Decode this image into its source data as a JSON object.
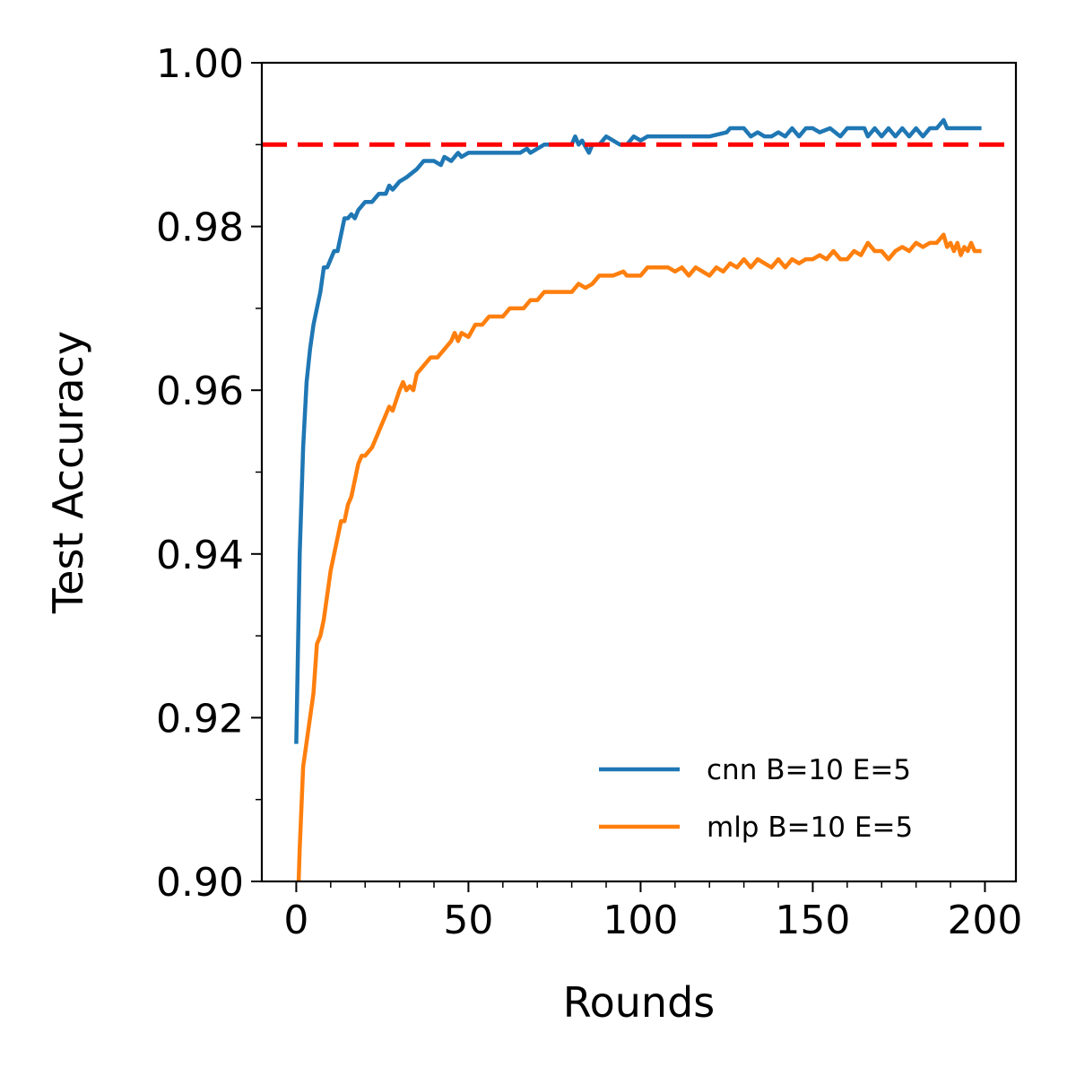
{
  "chart_data": {
    "type": "line",
    "xlabel": "Rounds",
    "ylabel": "Test Accuracy",
    "xlim": [
      -10,
      209
    ],
    "ylim": [
      0.9,
      1.0
    ],
    "x_ticks": [
      0,
      50,
      100,
      150,
      200
    ],
    "x_tick_labels": [
      "0",
      "50",
      "100",
      "150",
      "200"
    ],
    "y_ticks": [
      0.9,
      0.92,
      0.94,
      0.96,
      0.98,
      1.0
    ],
    "y_tick_labels": [
      "0.90",
      "0.92",
      "0.94",
      "0.96",
      "0.98",
      "1.00"
    ],
    "grid": false,
    "legend_position": "lower right",
    "reference_line": {
      "y": 0.99,
      "color": "#ff0000",
      "style": "dashed"
    },
    "series": [
      {
        "name": "cnn B=10 E=5",
        "color": "#1f77b4",
        "points": [
          [
            0,
            0.9168
          ],
          [
            1,
            0.94
          ],
          [
            2,
            0.953
          ],
          [
            3,
            0.961
          ],
          [
            4,
            0.965
          ],
          [
            5,
            0.968
          ],
          [
            6,
            0.97
          ],
          [
            7,
            0.972
          ],
          [
            8,
            0.975
          ],
          [
            9,
            0.975
          ],
          [
            10,
            0.976
          ],
          [
            11,
            0.977
          ],
          [
            12,
            0.977
          ],
          [
            13,
            0.979
          ],
          [
            14,
            0.981
          ],
          [
            15,
            0.981
          ],
          [
            16,
            0.9815
          ],
          [
            17,
            0.981
          ],
          [
            18,
            0.982
          ],
          [
            19,
            0.9825
          ],
          [
            20,
            0.983
          ],
          [
            22,
            0.983
          ],
          [
            24,
            0.984
          ],
          [
            26,
            0.984
          ],
          [
            27,
            0.985
          ],
          [
            28,
            0.9845
          ],
          [
            30,
            0.9855
          ],
          [
            32,
            0.986
          ],
          [
            35,
            0.987
          ],
          [
            37,
            0.988
          ],
          [
            40,
            0.988
          ],
          [
            42,
            0.9875
          ],
          [
            43,
            0.9885
          ],
          [
            45,
            0.988
          ],
          [
            47,
            0.989
          ],
          [
            48,
            0.9885
          ],
          [
            50,
            0.989
          ],
          [
            55,
            0.989
          ],
          [
            60,
            0.989
          ],
          [
            65,
            0.989
          ],
          [
            67,
            0.9895
          ],
          [
            68,
            0.989
          ],
          [
            70,
            0.9895
          ],
          [
            72,
            0.99
          ],
          [
            75,
            0.99
          ],
          [
            80,
            0.99
          ],
          [
            81,
            0.991
          ],
          [
            82,
            0.99
          ],
          [
            83,
            0.9905
          ],
          [
            85,
            0.989
          ],
          [
            86,
            0.99
          ],
          [
            88,
            0.99
          ],
          [
            90,
            0.991
          ],
          [
            92,
            0.9905
          ],
          [
            94,
            0.99
          ],
          [
            96,
            0.99
          ],
          [
            98,
            0.991
          ],
          [
            100,
            0.9905
          ],
          [
            102,
            0.991
          ],
          [
            110,
            0.991
          ],
          [
            120,
            0.991
          ],
          [
            125,
            0.9915
          ],
          [
            126,
            0.992
          ],
          [
            130,
            0.992
          ],
          [
            132,
            0.991
          ],
          [
            134,
            0.9915
          ],
          [
            136,
            0.991
          ],
          [
            138,
            0.991
          ],
          [
            140,
            0.9915
          ],
          [
            142,
            0.991
          ],
          [
            144,
            0.992
          ],
          [
            146,
            0.991
          ],
          [
            148,
            0.992
          ],
          [
            150,
            0.992
          ],
          [
            152,
            0.9915
          ],
          [
            155,
            0.992
          ],
          [
            158,
            0.991
          ],
          [
            160,
            0.992
          ],
          [
            165,
            0.992
          ],
          [
            166,
            0.991
          ],
          [
            168,
            0.992
          ],
          [
            170,
            0.991
          ],
          [
            172,
            0.992
          ],
          [
            174,
            0.991
          ],
          [
            176,
            0.992
          ],
          [
            178,
            0.991
          ],
          [
            180,
            0.992
          ],
          [
            182,
            0.991
          ],
          [
            184,
            0.992
          ],
          [
            186,
            0.992
          ],
          [
            188,
            0.993
          ],
          [
            189,
            0.992
          ],
          [
            192,
            0.992
          ],
          [
            199,
            0.992
          ]
        ]
      },
      {
        "name": "mlp B=10 E=5",
        "color": "#ff7f0e",
        "points": [
          [
            0.7,
            0.9
          ],
          [
            1,
            0.904
          ],
          [
            2,
            0.914
          ],
          [
            3,
            0.917
          ],
          [
            4,
            0.92
          ],
          [
            5,
            0.923
          ],
          [
            6,
            0.929
          ],
          [
            7,
            0.93
          ],
          [
            8,
            0.932
          ],
          [
            9,
            0.935
          ],
          [
            10,
            0.938
          ],
          [
            12,
            0.942
          ],
          [
            13,
            0.944
          ],
          [
            14,
            0.944
          ],
          [
            15,
            0.946
          ],
          [
            16,
            0.947
          ],
          [
            17,
            0.949
          ],
          [
            18,
            0.951
          ],
          [
            19,
            0.952
          ],
          [
            20,
            0.952
          ],
          [
            22,
            0.953
          ],
          [
            24,
            0.955
          ],
          [
            26,
            0.957
          ],
          [
            27,
            0.958
          ],
          [
            28,
            0.9575
          ],
          [
            30,
            0.96
          ],
          [
            31,
            0.961
          ],
          [
            32,
            0.96
          ],
          [
            33,
            0.9605
          ],
          [
            34,
            0.96
          ],
          [
            35,
            0.962
          ],
          [
            37,
            0.963
          ],
          [
            39,
            0.964
          ],
          [
            41,
            0.964
          ],
          [
            43,
            0.965
          ],
          [
            45,
            0.966
          ],
          [
            46,
            0.967
          ],
          [
            47,
            0.966
          ],
          [
            48,
            0.967
          ],
          [
            50,
            0.9665
          ],
          [
            52,
            0.968
          ],
          [
            54,
            0.968
          ],
          [
            56,
            0.969
          ],
          [
            58,
            0.969
          ],
          [
            60,
            0.969
          ],
          [
            62,
            0.97
          ],
          [
            64,
            0.97
          ],
          [
            66,
            0.97
          ],
          [
            68,
            0.971
          ],
          [
            70,
            0.971
          ],
          [
            72,
            0.972
          ],
          [
            76,
            0.972
          ],
          [
            80,
            0.972
          ],
          [
            82,
            0.973
          ],
          [
            84,
            0.9725
          ],
          [
            86,
            0.973
          ],
          [
            88,
            0.974
          ],
          [
            92,
            0.974
          ],
          [
            95,
            0.9745
          ],
          [
            96,
            0.974
          ],
          [
            100,
            0.974
          ],
          [
            102,
            0.975
          ],
          [
            108,
            0.975
          ],
          [
            110,
            0.9745
          ],
          [
            112,
            0.975
          ],
          [
            114,
            0.974
          ],
          [
            116,
            0.975
          ],
          [
            118,
            0.9745
          ],
          [
            120,
            0.974
          ],
          [
            122,
            0.975
          ],
          [
            124,
            0.9745
          ],
          [
            126,
            0.9755
          ],
          [
            128,
            0.975
          ],
          [
            130,
            0.976
          ],
          [
            132,
            0.975
          ],
          [
            134,
            0.976
          ],
          [
            136,
            0.9755
          ],
          [
            138,
            0.975
          ],
          [
            140,
            0.976
          ],
          [
            142,
            0.975
          ],
          [
            144,
            0.976
          ],
          [
            146,
            0.9755
          ],
          [
            148,
            0.976
          ],
          [
            150,
            0.976
          ],
          [
            152,
            0.9765
          ],
          [
            154,
            0.976
          ],
          [
            156,
            0.977
          ],
          [
            158,
            0.976
          ],
          [
            160,
            0.976
          ],
          [
            162,
            0.977
          ],
          [
            164,
            0.9765
          ],
          [
            166,
            0.978
          ],
          [
            168,
            0.977
          ],
          [
            170,
            0.977
          ],
          [
            172,
            0.976
          ],
          [
            174,
            0.977
          ],
          [
            176,
            0.9775
          ],
          [
            178,
            0.977
          ],
          [
            180,
            0.978
          ],
          [
            182,
            0.9775
          ],
          [
            184,
            0.978
          ],
          [
            186,
            0.978
          ],
          [
            188,
            0.979
          ],
          [
            189,
            0.9775
          ],
          [
            190,
            0.978
          ],
          [
            191,
            0.977
          ],
          [
            192,
            0.978
          ],
          [
            193,
            0.9765
          ],
          [
            194,
            0.9775
          ],
          [
            195,
            0.977
          ],
          [
            196,
            0.978
          ],
          [
            197,
            0.977
          ],
          [
            199,
            0.977
          ]
        ]
      }
    ]
  }
}
